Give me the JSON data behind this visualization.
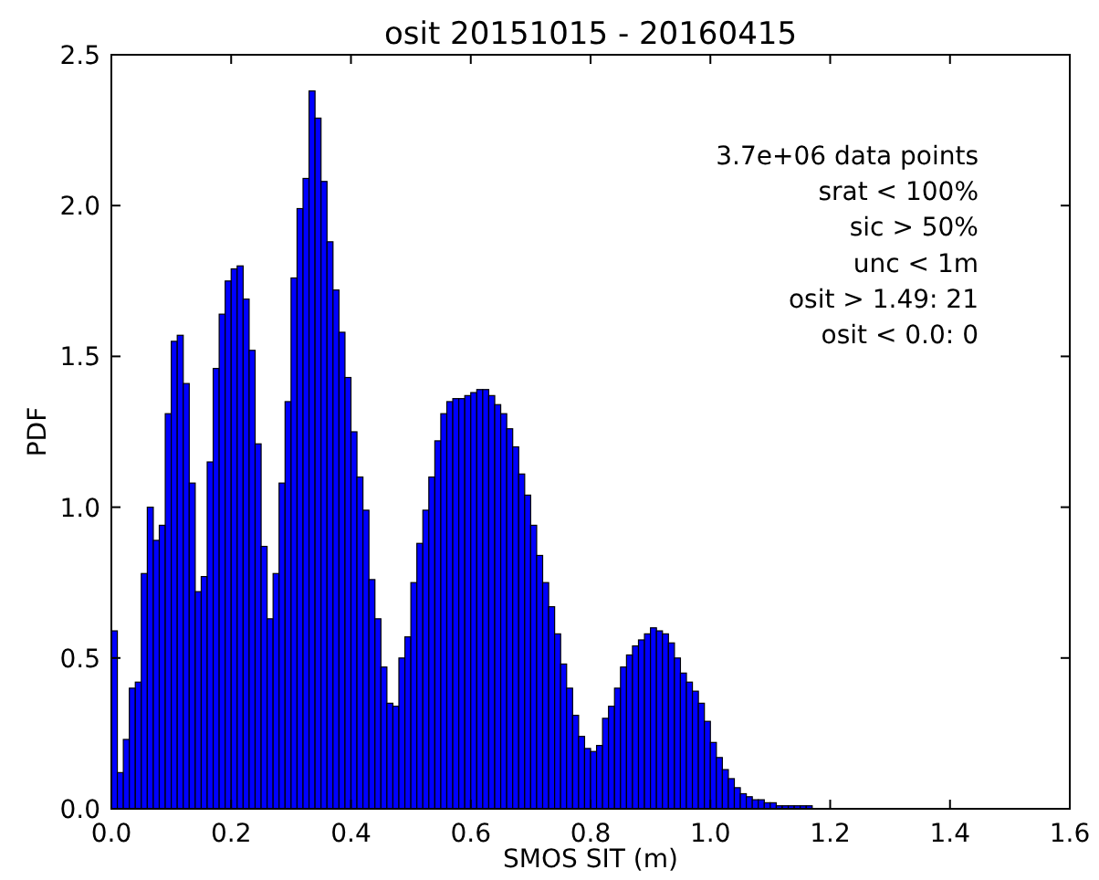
{
  "chart_data": {
    "type": "histogram",
    "title": "osit 20151015 - 20160415",
    "xlabel": "SMOS SIT (m)",
    "ylabel": "PDF",
    "color": "#0000ff",
    "bins": [
      0,
      0.01,
      0.02,
      0.03,
      0.04,
      0.05,
      0.06,
      0.07,
      0.08,
      0.09,
      0.1,
      0.11,
      0.12,
      0.13,
      0.14,
      0.15,
      0.16,
      0.17,
      0.18,
      0.19,
      0.2,
      0.21,
      0.22,
      0.23,
      0.24,
      0.25,
      0.26,
      0.27,
      0.28,
      0.29,
      0.3,
      0.31,
      0.32,
      0.33,
      0.34,
      0.35,
      0.36,
      0.37,
      0.38,
      0.39,
      0.4,
      0.41,
      0.42,
      0.43,
      0.44,
      0.45,
      0.46,
      0.47,
      0.48,
      0.49,
      0.5,
      0.51,
      0.52,
      0.53,
      0.54,
      0.55,
      0.56,
      0.57,
      0.58,
      0.59,
      0.6,
      0.61,
      0.62,
      0.63,
      0.64,
      0.65,
      0.66,
      0.67,
      0.68,
      0.69,
      0.7,
      0.71,
      0.72,
      0.73,
      0.74,
      0.75,
      0.76,
      0.77,
      0.78,
      0.79,
      0.8,
      0.81,
      0.82,
      0.83,
      0.84,
      0.85,
      0.86,
      0.87,
      0.88,
      0.89,
      0.9,
      0.91,
      0.92,
      0.93,
      0.94,
      0.95,
      0.96,
      0.97,
      0.98,
      0.99,
      1,
      1.01,
      1.02,
      1.03,
      1.04,
      1.05,
      1.06,
      1.07,
      1.08,
      1.09,
      1.1,
      1.11,
      1.12,
      1.13,
      1.14,
      1.15,
      1.16,
      1.17
    ],
    "values": [
      0.59,
      0.12,
      0.23,
      0.4,
      0.42,
      0.78,
      1.0,
      0.89,
      0.94,
      1.31,
      1.55,
      1.57,
      1.41,
      1.08,
      0.72,
      0.77,
      1.15,
      1.46,
      1.64,
      1.75,
      1.79,
      1.8,
      1.69,
      1.52,
      1.21,
      0.87,
      0.63,
      0.78,
      1.08,
      1.35,
      1.76,
      1.99,
      2.09,
      2.38,
      2.29,
      2.08,
      1.88,
      1.72,
      1.58,
      1.43,
      1.25,
      1.1,
      0.99,
      0.76,
      0.63,
      0.47,
      0.35,
      0.34,
      0.5,
      0.57,
      0.75,
      0.88,
      0.99,
      1.1,
      1.22,
      1.31,
      1.35,
      1.36,
      1.36,
      1.37,
      1.38,
      1.39,
      1.39,
      1.37,
      1.34,
      1.31,
      1.26,
      1.2,
      1.11,
      1.04,
      0.94,
      0.84,
      0.75,
      0.67,
      0.58,
      0.48,
      0.4,
      0.31,
      0.24,
      0.2,
      0.19,
      0.21,
      0.3,
      0.34,
      0.4,
      0.47,
      0.51,
      0.54,
      0.56,
      0.58,
      0.6,
      0.59,
      0.58,
      0.55,
      0.5,
      0.45,
      0.42,
      0.39,
      0.35,
      0.29,
      0.22,
      0.17,
      0.13,
      0.1,
      0.07,
      0.05,
      0.04,
      0.03,
      0.03,
      0.02,
      0.02,
      0.01,
      0.01,
      0.01,
      0.01,
      0.01,
      0.01
    ],
    "xlim": [
      0,
      1.6
    ],
    "xticks": [
      {
        "value": 0,
        "label": "0.0"
      },
      {
        "value": 0.2,
        "label": "0.2"
      },
      {
        "value": 0.4,
        "label": "0.4"
      },
      {
        "value": 0.6,
        "label": "0.6"
      },
      {
        "value": 0.8,
        "label": "0.8"
      },
      {
        "value": 1.0,
        "label": "1.0"
      },
      {
        "value": 1.2,
        "label": "1.2"
      },
      {
        "value": 1.4,
        "label": "1.4"
      },
      {
        "value": 1.6,
        "label": "1.6"
      }
    ],
    "ylim": [
      0,
      2.5
    ],
    "yticks": [
      {
        "value": 0,
        "label": "0.0"
      },
      {
        "value": 0.5,
        "label": "0.5"
      },
      {
        "value": 1.0,
        "label": "1.0"
      },
      {
        "value": 1.5,
        "label": "1.5"
      },
      {
        "value": 2.0,
        "label": "2.0"
      },
      {
        "value": 2.5,
        "label": "2.5"
      }
    ],
    "annotations": [
      "3.7e+06 data points",
      "srat < 100%",
      "sic > 50%",
      "unc < 1m",
      "osit > 1.49: 21",
      "osit < 0.0: 0"
    ]
  }
}
